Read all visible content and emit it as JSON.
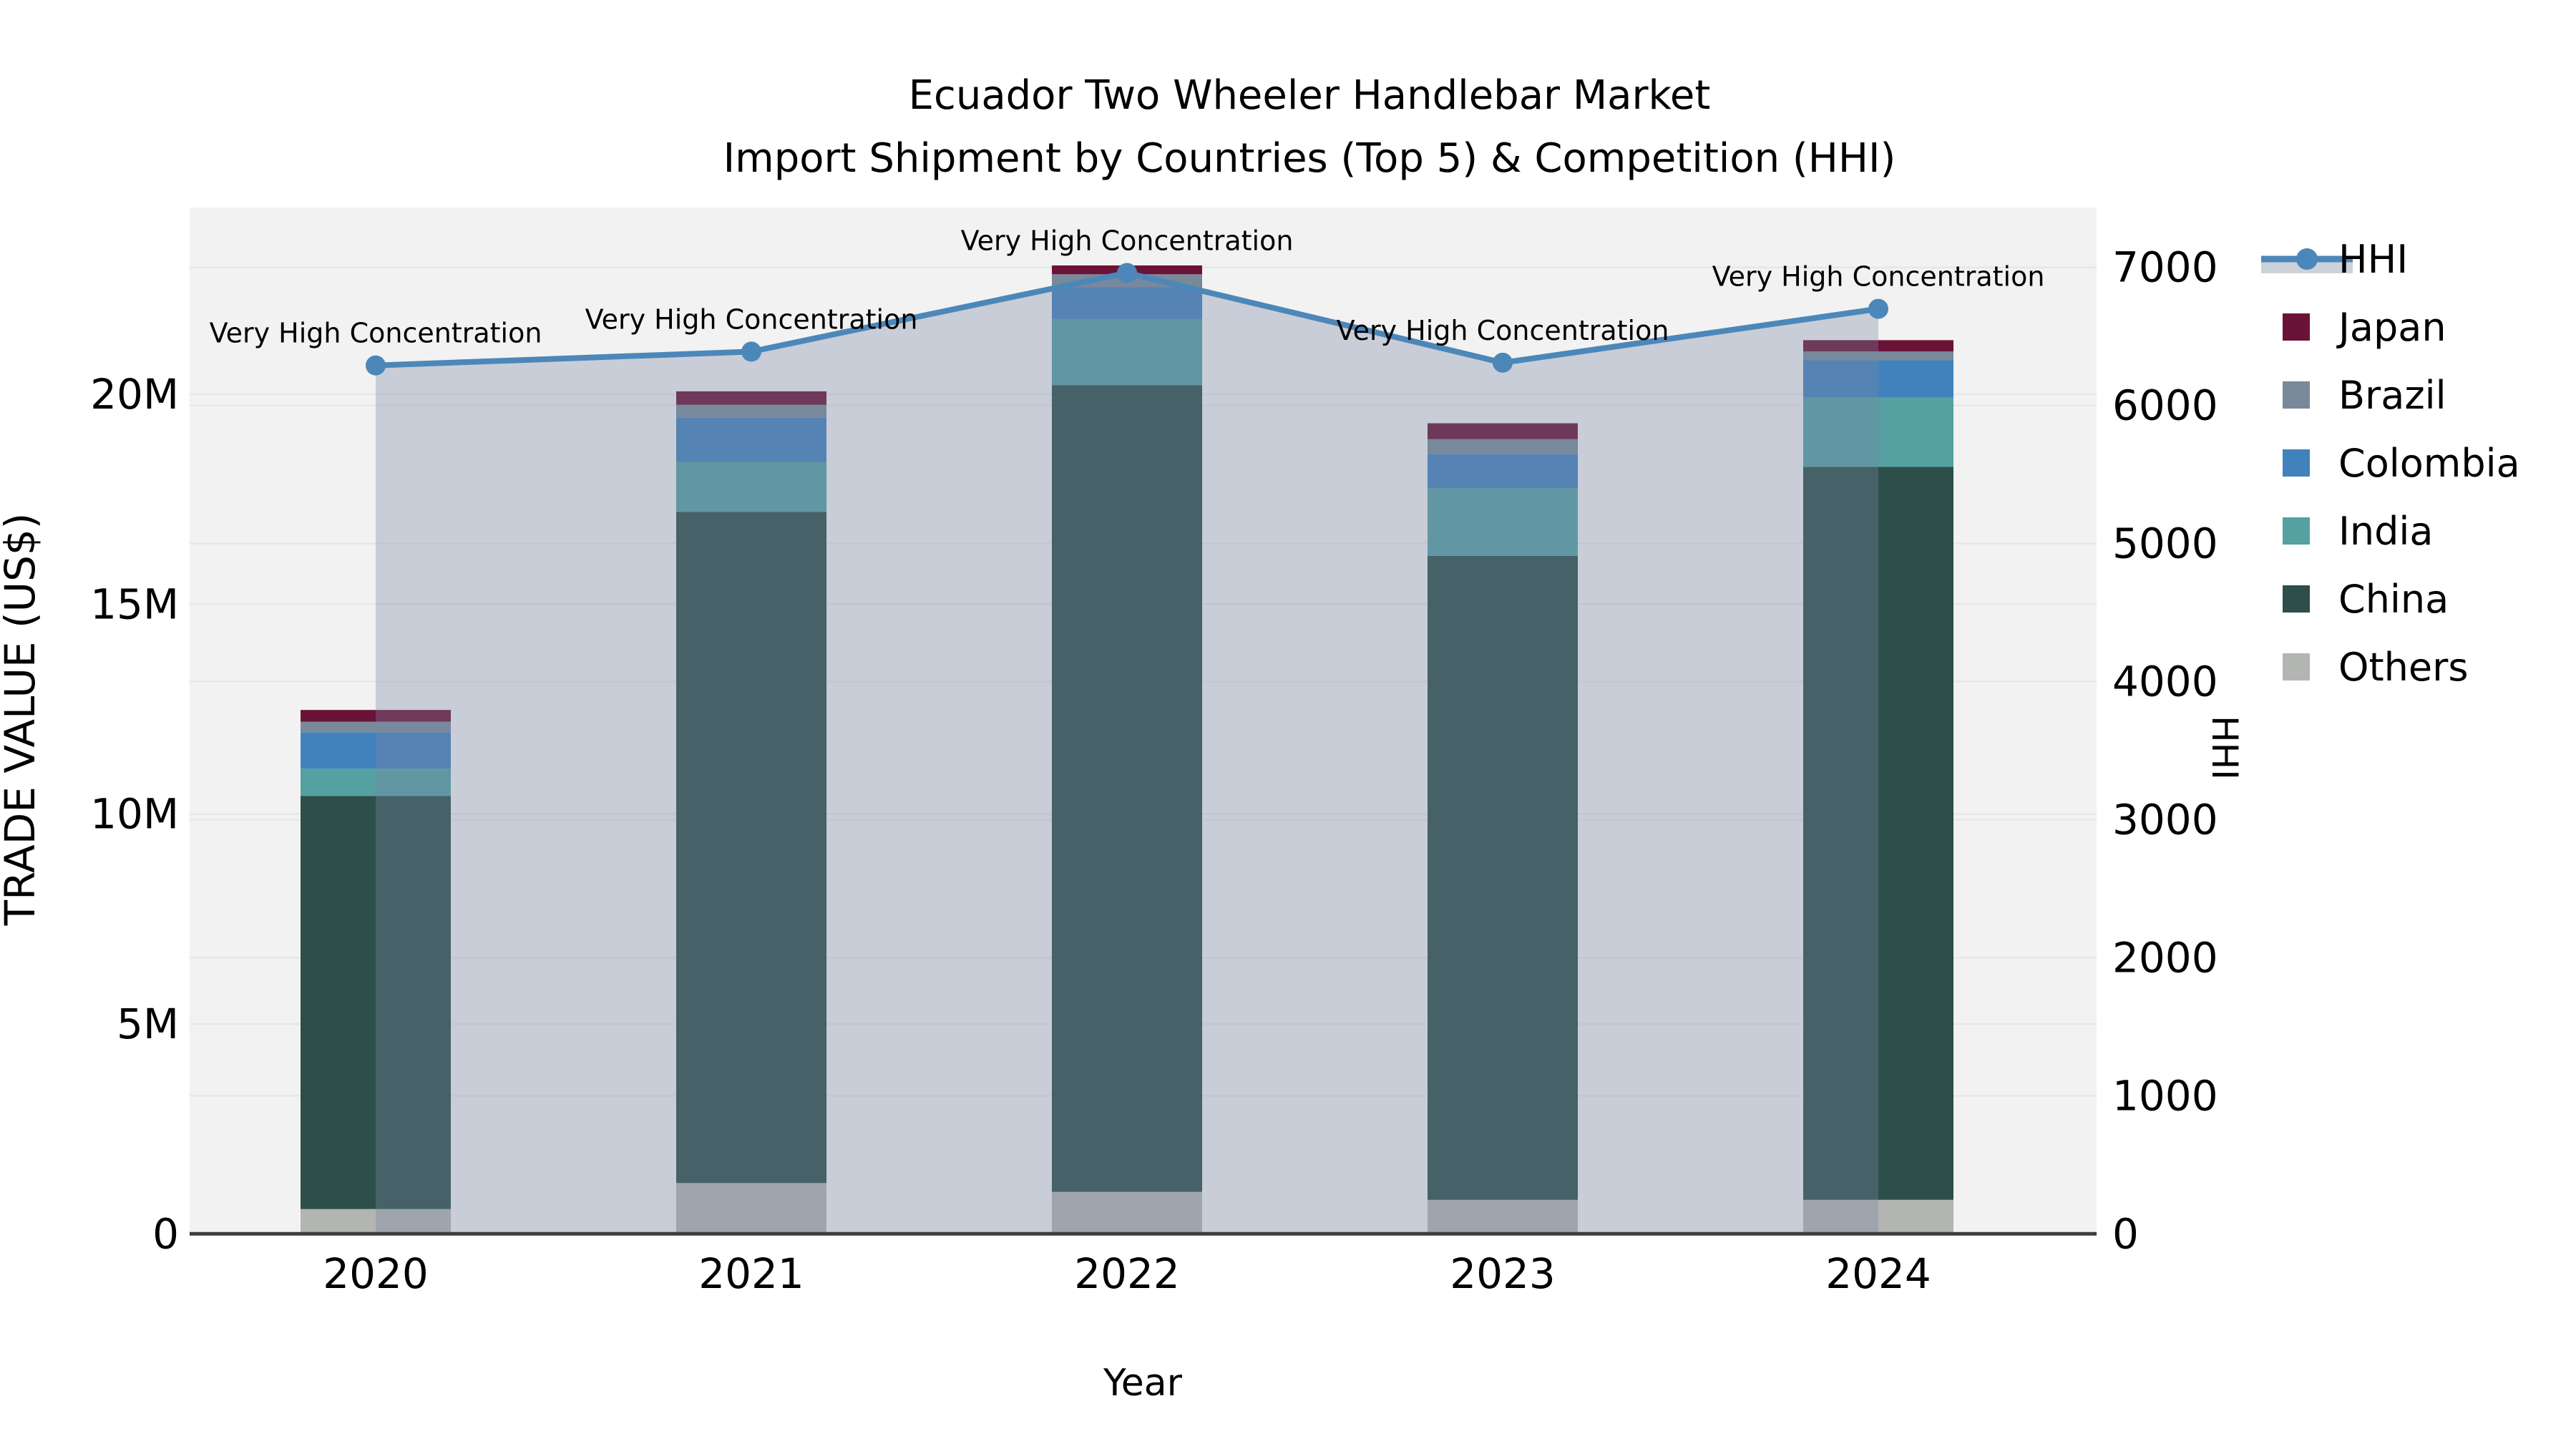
{
  "title_lines": [
    "Ecuador Two Wheeler Handlebar Market",
    "Import Shipment by Countries (Top 5) & Competition (HHI)"
  ],
  "chart_data": {
    "type": "combo_stacked_bar_line_dual_axis",
    "categories": [
      "2020",
      "2021",
      "2022",
      "2023",
      "2024"
    ],
    "bar_value_unit": "million US$",
    "series": [
      {
        "name": "Others",
        "color": "#b3b5b2",
        "values": [
          0.59,
          1.21,
          1.0,
          0.81,
          0.81
        ]
      },
      {
        "name": "China",
        "color": "#2d4e49",
        "values": [
          9.84,
          15.99,
          19.22,
          15.34,
          17.46
        ]
      },
      {
        "name": "India",
        "color": "#55a0a1",
        "values": [
          0.65,
          1.19,
          1.57,
          1.61,
          1.65
        ]
      },
      {
        "name": "Colombia",
        "color": "#4282bc",
        "values": [
          0.87,
          1.05,
          0.76,
          0.81,
          0.89
        ]
      },
      {
        "name": "Brazil",
        "color": "#78899a",
        "values": [
          0.25,
          0.31,
          0.31,
          0.36,
          0.21
        ]
      },
      {
        "name": "Japan",
        "color": "#6b1237",
        "values": [
          0.28,
          0.32,
          0.21,
          0.38,
          0.27
        ]
      }
    ],
    "bar_totals": [
      12.48,
      20.07,
      23.07,
      19.31,
      21.29
    ],
    "line_series": {
      "name": "HHI",
      "color": "#4c87b9",
      "area_fill": "rgba(120,135,165,0.34)",
      "values": [
        6290,
        6390,
        6960,
        6310,
        6700
      ]
    },
    "point_annotation_text": "Very High Concentration",
    "annotations": [
      "Very High Concentration",
      "Very High Concentration",
      "Very High Concentration",
      "Very High Concentration",
      "Very High Concentration"
    ],
    "xlabel": "Year",
    "ylabel_left": "TRADE VALUE (US$)",
    "ylabel_right": "HHI",
    "y_left_ticks": [
      {
        "label": "0",
        "value": 0
      },
      {
        "label": "5M",
        "value": 5
      },
      {
        "label": "10M",
        "value": 10
      },
      {
        "label": "15M",
        "value": 15
      },
      {
        "label": "20M",
        "value": 20
      }
    ],
    "y_right_ticks": [
      {
        "label": "0",
        "value": 0
      },
      {
        "label": "1000",
        "value": 1000
      },
      {
        "label": "2000",
        "value": 2000
      },
      {
        "label": "3000",
        "value": 3000
      },
      {
        "label": "4000",
        "value": 4000
      },
      {
        "label": "5000",
        "value": 5000
      },
      {
        "label": "6000",
        "value": 6000
      },
      {
        "label": "7000",
        "value": 7000
      }
    ],
    "ylim_left": [
      0,
      24.45
    ],
    "ylim_right": [
      0,
      7434
    ],
    "grid": "horizontal gridlines for both y axes",
    "plot_background": "#f2f2f2",
    "gridline_color": "#e7e7e7",
    "axis_line_color": "#3d3d3d",
    "legend_position": "right, outside plot",
    "legend": [
      {
        "label": "HHI",
        "type": "line",
        "color": "#4c87b9"
      },
      {
        "label": "Japan",
        "type": "swatch",
        "color": "#6b1237"
      },
      {
        "label": "Brazil",
        "type": "swatch",
        "color": "#78899a"
      },
      {
        "label": "Colombia",
        "type": "swatch",
        "color": "#4282bc"
      },
      {
        "label": "India",
        "type": "swatch",
        "color": "#55a0a1"
      },
      {
        "label": "China",
        "type": "swatch",
        "color": "#2d4e49"
      },
      {
        "label": "Others",
        "type": "swatch",
        "color": "#b3b5b2"
      }
    ]
  }
}
